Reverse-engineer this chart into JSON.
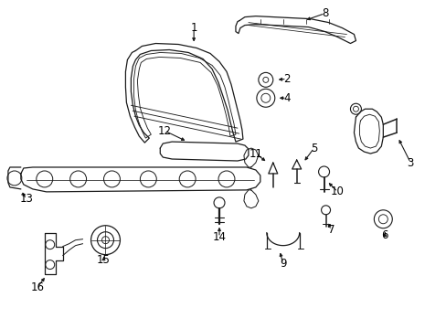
{
  "background_color": "#ffffff",
  "fig_width": 4.89,
  "fig_height": 3.6,
  "dpi": 100,
  "line_color": "#1a1a1a",
  "text_color": "#000000",
  "font_size": 8.5
}
